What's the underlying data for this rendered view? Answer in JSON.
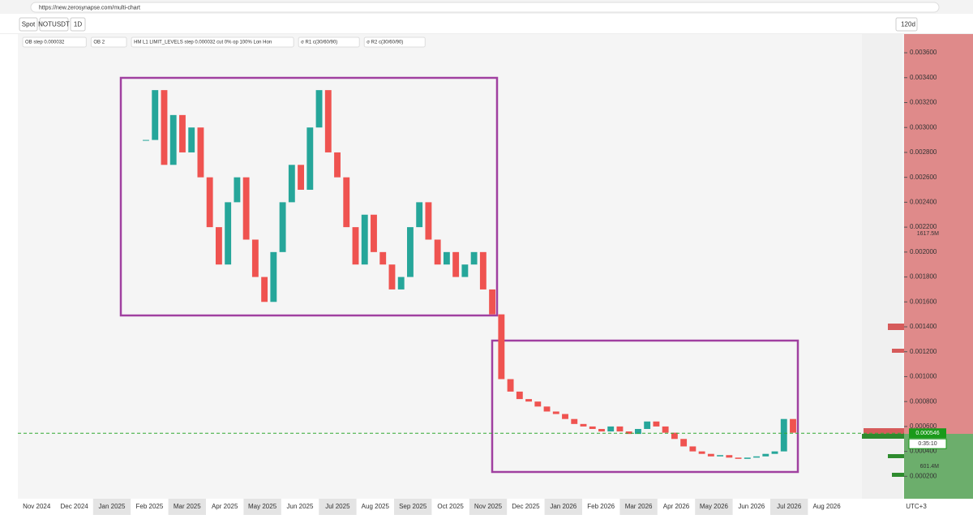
{
  "browser": {
    "url": "https://new.zerosynapse.com/multi-chart"
  },
  "toolbar": {
    "market": "Spot",
    "symbol": "NOTUSDT",
    "interval": "1D",
    "range": "120d"
  },
  "indicators": [
    "OB step 0.000032",
    "OB 2",
    "HM L1 LIMIT_LEVELS step 0.000032 cut 0% op 100% Lon Hon",
    "σ R1 c(30/60/90)",
    "σ R2 c(30/60/90)"
  ],
  "chart": {
    "up_color": "#26a69a",
    "down_color": "#ef5350",
    "closes": [
      0.0029,
      0.0033,
      0.0027,
      0.0031,
      0.0028,
      0.003,
      0.0026,
      0.0022,
      0.0019,
      0.0024,
      0.0026,
      0.0021,
      0.0018,
      0.0016,
      0.002,
      0.0024,
      0.0027,
      0.0025,
      0.003,
      0.0033,
      0.0028,
      0.0026,
      0.0022,
      0.0019,
      0.0023,
      0.002,
      0.0019,
      0.0017,
      0.0018,
      0.0022,
      0.0024,
      0.0021,
      0.0019,
      0.002,
      0.0018,
      0.0019,
      0.002,
      0.0017,
      0.0015,
      0.00098,
      0.00088,
      0.00082,
      0.0008,
      0.00076,
      0.00072,
      0.0007,
      0.00066,
      0.00062,
      0.0006,
      0.00058,
      0.00056,
      0.0006,
      0.00056,
      0.00054,
      0.00058,
      0.00064,
      0.0006,
      0.00055,
      0.0005,
      0.00044,
      0.0004,
      0.00038,
      0.00036,
      0.00037,
      0.00035,
      0.00034,
      0.00035,
      0.00036,
      0.00038,
      0.0004,
      0.00066,
      0.00055
    ],
    "ylim": [
      2e-05,
      0.00375
    ],
    "yticks": [
      {
        "value": 0.0036,
        "label": "0.003600"
      },
      {
        "value": 0.0034,
        "label": "0.003400"
      },
      {
        "value": 0.0032,
        "label": "0.003200"
      },
      {
        "value": 0.003,
        "label": "0.003000"
      },
      {
        "value": 0.0028,
        "label": "0.002800"
      },
      {
        "value": 0.0026,
        "label": "0.002600"
      },
      {
        "value": 0.0024,
        "label": "0.002400"
      },
      {
        "value": 0.0022,
        "label": "0.002200"
      },
      {
        "value": 0.002,
        "label": "0.002000"
      },
      {
        "value": 0.0018,
        "label": "0.001800"
      },
      {
        "value": 0.0016,
        "label": "0.001600"
      },
      {
        "value": 0.0014,
        "label": "0.001400"
      },
      {
        "value": 0.0012,
        "label": "0.001200"
      },
      {
        "value": 0.001,
        "label": "0.001000"
      },
      {
        "value": 0.0008,
        "label": "0.000800"
      },
      {
        "value": 0.0006,
        "label": "0.000600"
      },
      {
        "value": 0.0004,
        "label": "0.000400"
      },
      {
        "value": 0.0002,
        "label": "0.000200"
      }
    ],
    "time_labels": [
      "Nov 2024",
      "Dec 2024",
      "Jan 2025",
      "Feb 2025",
      "Mar 2025",
      "Apr 2025",
      "May 2025",
      "Jun 2025",
      "Jul 2025",
      "Aug 2025",
      "Sep 2025",
      "Oct 2025",
      "Nov 2025",
      "Dec 2025",
      "Jan 2026",
      "Feb 2026",
      "Mar 2026",
      "Apr 2026",
      "May 2026",
      "Jun 2026",
      "Jul 2026",
      "Aug 2026"
    ],
    "last_price": {
      "value": 0.000546,
      "label": "0.000546"
    },
    "countdown": "0:35:10",
    "volume_labels": [
      "1617.5M",
      "601.4M"
    ],
    "timezone": "UTC+3"
  }
}
